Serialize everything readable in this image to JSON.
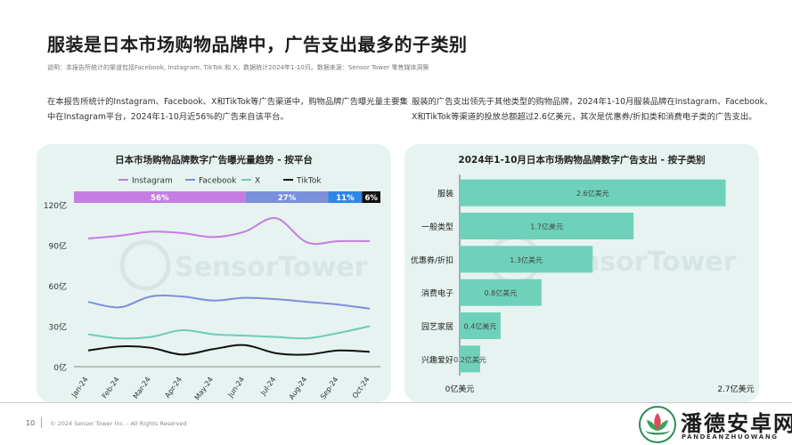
{
  "page": {
    "title": "服装是日本市场购物品牌中，广告支出最多的子类别",
    "note": "说明：本报告所统计的渠道包括Facebook, Instagram, TikTok 和 X。数据统计2024年1-10月。数据来源：Sensor Tower 零售媒体洞察",
    "para_left": "在本报告所统计的Instagram、Facebook、X和TikTok等广告渠道中，购物品牌广告曝光量主要集中在Instagram平台，2024年1-10月近56%的广告来自该平台。",
    "para_right": "服装的广告支出领先于其他类型的购物品牌，2024年1-10月服装品牌在Instagram、Facebook、X和TikTok等渠道的投放总额超过2.6亿美元，其次是优惠券/折扣类和消费电子类的广告支出。",
    "page_number": "10",
    "copyright": "© 2024 Sensor Tower Inc. - All Rights Reserved",
    "watermark": "SensorTower",
    "brand_name": "潘德安卓网",
    "brand_sub": "PANDEANZHUOWANG"
  },
  "chart_data": [
    {
      "type": "line",
      "title": "日本市场购物品牌数字广告曝光量趋势 - 按平台",
      "x": [
        "Jan-24",
        "Feb-24",
        "Mar-24",
        "Apr-24",
        "May-24",
        "Jun-24",
        "Jul-24",
        "Aug-24",
        "Sep-24",
        "Oct-24"
      ],
      "yticks": [
        "0亿",
        "30亿",
        "60亿",
        "90亿",
        "120亿"
      ],
      "ylim": [
        0,
        120
      ],
      "series": [
        {
          "name": "Instagram",
          "color": "#c47ee0",
          "values": [
            95,
            97,
            100,
            99,
            96,
            100,
            110,
            92,
            93,
            93
          ]
        },
        {
          "name": "Facebook",
          "color": "#7b8fdb",
          "values": [
            48,
            44,
            52,
            52,
            49,
            51,
            50,
            48,
            46,
            43
          ]
        },
        {
          "name": "X",
          "color": "#6ccdb7",
          "values": [
            24,
            21,
            22,
            27,
            24,
            23,
            22,
            21,
            25,
            30
          ]
        },
        {
          "name": "TikTok",
          "color": "#111111",
          "values": [
            12,
            15,
            14,
            9,
            13,
            16,
            10,
            9,
            12,
            11
          ]
        }
      ],
      "share_bar": [
        {
          "label": "56%",
          "value": 56,
          "color": "#c47ee0"
        },
        {
          "label": "27%",
          "value": 27,
          "color": "#7b8fdb"
        },
        {
          "label": "11%",
          "value": 11,
          "color": "#2f86e6"
        },
        {
          "label": "6%",
          "value": 6,
          "color": "#111111"
        }
      ],
      "legend_position": "top"
    },
    {
      "type": "bar",
      "orientation": "horizontal",
      "title": "2024年1-10月日本市场购物品牌数字广告支出 - 按子类别",
      "categories": [
        "服装",
        "一般类型",
        "优惠券/折扣",
        "消费电子",
        "园艺家居",
        "兴趣爱好"
      ],
      "values": [
        2.6,
        1.7,
        1.3,
        0.8,
        0.4,
        0.2
      ],
      "labels": [
        "2.6亿美元",
        "1.7亿美元",
        "1.3亿美元",
        "0.8亿美元",
        "0.4亿美元",
        "0.2亿美元"
      ],
      "xlim": [
        0,
        2.7
      ],
      "xticks": [
        "0亿美元",
        "2.7亿美元"
      ],
      "color": "#6fd1ba"
    }
  ]
}
